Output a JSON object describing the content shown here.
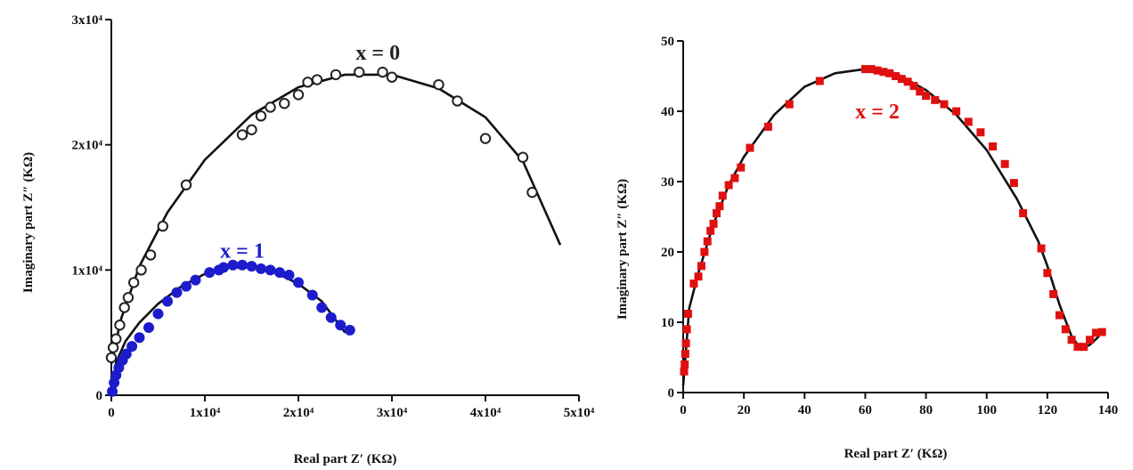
{
  "chart_data": [
    {
      "type": "scatter",
      "panel": "left",
      "xlabel": "Real part Z′ (KΩ)",
      "ylabel": "Imaginary part Z″ (KΩ)",
      "xlim": [
        0,
        50000
      ],
      "ylim": [
        0,
        30000
      ],
      "xticks": [
        0,
        10000,
        20000,
        30000,
        40000,
        50000
      ],
      "yticks": [
        0,
        10000,
        20000,
        30000
      ],
      "xtick_labels": [
        "0",
        "1x10⁴",
        "2x10⁴",
        "3x10⁴",
        "4x10⁴",
        "5x10⁴"
      ],
      "ytick_labels": [
        "0",
        "1x10⁴",
        "2x10⁴",
        "3x10⁴"
      ],
      "grid": false,
      "series": [
        {
          "name": "x = 0",
          "color": "#222222",
          "marker": "open-circle",
          "points": [
            [
              0,
              3000
            ],
            [
              200,
              3800
            ],
            [
              500,
              4500
            ],
            [
              900,
              5600
            ],
            [
              1400,
              7000
            ],
            [
              1800,
              7800
            ],
            [
              2400,
              9000
            ],
            [
              3200,
              10000
            ],
            [
              4200,
              11200
            ],
            [
              5500,
              13500
            ],
            [
              8000,
              16800
            ],
            [
              14000,
              20800
            ],
            [
              15000,
              21200
            ],
            [
              16000,
              22300
            ],
            [
              17000,
              23000
            ],
            [
              18500,
              23300
            ],
            [
              20000,
              24000
            ],
            [
              21000,
              25000
            ],
            [
              22000,
              25200
            ],
            [
              24000,
              25600
            ],
            [
              26500,
              25800
            ],
            [
              29000,
              25800
            ],
            [
              30000,
              25400
            ],
            [
              35000,
              24800
            ],
            [
              37000,
              23500
            ],
            [
              40000,
              20500
            ],
            [
              44000,
              19000
            ],
            [
              45000,
              16200
            ]
          ],
          "fit": [
            [
              0,
              2500
            ],
            [
              1000,
              6000
            ],
            [
              3000,
              10300
            ],
            [
              6000,
              14600
            ],
            [
              10000,
              18800
            ],
            [
              15000,
              22400
            ],
            [
              20000,
              24600
            ],
            [
              25000,
              25600
            ],
            [
              30000,
              25600
            ],
            [
              35000,
              24500
            ],
            [
              40000,
              22200
            ],
            [
              44000,
              18700
            ],
            [
              48000,
              12000
            ]
          ]
        },
        {
          "name": "x = 1",
          "color": "#1c1ccc",
          "marker": "filled-circle",
          "points": [
            [
              100,
              300
            ],
            [
              300,
              1000
            ],
            [
              500,
              1600
            ],
            [
              800,
              2200
            ],
            [
              1200,
              2800
            ],
            [
              1600,
              3300
            ],
            [
              2200,
              3900
            ],
            [
              3000,
              4600
            ],
            [
              4000,
              5400
            ],
            [
              5000,
              6500
            ],
            [
              6000,
              7500
            ],
            [
              7000,
              8200
            ],
            [
              8000,
              8700
            ],
            [
              9000,
              9200
            ],
            [
              10500,
              9800
            ],
            [
              11500,
              10000
            ],
            [
              12000,
              10200
            ],
            [
              13000,
              10400
            ],
            [
              14000,
              10400
            ],
            [
              15000,
              10300
            ],
            [
              16000,
              10100
            ],
            [
              17000,
              10000
            ],
            [
              18000,
              9800
            ],
            [
              19000,
              9600
            ],
            [
              20000,
              9000
            ],
            [
              21500,
              8000
            ],
            [
              22500,
              7000
            ],
            [
              23500,
              6200
            ],
            [
              24500,
              5600
            ],
            [
              25500,
              5200
            ]
          ],
          "fit": [
            [
              0,
              0
            ],
            [
              500,
              2600
            ],
            [
              1500,
              4300
            ],
            [
              3000,
              5800
            ],
            [
              5000,
              7300
            ],
            [
              7500,
              8700
            ],
            [
              10000,
              9700
            ],
            [
              12500,
              10200
            ],
            [
              15000,
              10200
            ],
            [
              17500,
              9800
            ],
            [
              20000,
              8900
            ],
            [
              22500,
              7500
            ],
            [
              25000,
              5000
            ]
          ]
        }
      ],
      "annotations": [
        {
          "text": "x = 0",
          "x": 28500,
          "y": 26800,
          "color": "#222222"
        },
        {
          "text": "x = 1",
          "x": 14000,
          "y": 11000,
          "color": "#1c1ccc"
        }
      ]
    },
    {
      "type": "scatter",
      "panel": "right",
      "xlabel": "Real part Z′ (KΩ)",
      "ylabel": "Imaginary part Z″ (KΩ)",
      "xlim": [
        0,
        140
      ],
      "ylim": [
        0,
        50
      ],
      "xticks": [
        0,
        20,
        40,
        60,
        80,
        100,
        120,
        140
      ],
      "yticks": [
        0,
        10,
        20,
        30,
        40,
        50
      ],
      "xtick_labels": [
        "0",
        "20",
        "40",
        "60",
        "80",
        "100",
        "120",
        "140"
      ],
      "ytick_labels": [
        "0",
        "10",
        "20",
        "30",
        "40",
        "50"
      ],
      "grid": false,
      "series": [
        {
          "name": "x = 2",
          "color": "#e01010",
          "marker": "filled-square",
          "points": [
            [
              0.3,
              3
            ],
            [
              0.5,
              4
            ],
            [
              0.7,
              5.5
            ],
            [
              0.9,
              7
            ],
            [
              1.2,
              9
            ],
            [
              1.6,
              11.2
            ],
            [
              3.5,
              15.5
            ],
            [
              5,
              16.5
            ],
            [
              6,
              18
            ],
            [
              7,
              20
            ],
            [
              8,
              21.5
            ],
            [
              9,
              23
            ],
            [
              10,
              24
            ],
            [
              11,
              25.5
            ],
            [
              12,
              26.5
            ],
            [
              13,
              28
            ],
            [
              15,
              29.5
            ],
            [
              17,
              30.5
            ],
            [
              19,
              32
            ],
            [
              22,
              34.8
            ],
            [
              28,
              37.8
            ],
            [
              35,
              41
            ],
            [
              45,
              44.3
            ],
            [
              60,
              46
            ],
            [
              62,
              46
            ],
            [
              64,
              45.8
            ],
            [
              66,
              45.6
            ],
            [
              68,
              45.4
            ],
            [
              70,
              45
            ],
            [
              72,
              44.6
            ],
            [
              74,
              44.2
            ],
            [
              76,
              43.6
            ],
            [
              78,
              42.8
            ],
            [
              80,
              42.2
            ],
            [
              83,
              41.6
            ],
            [
              86,
              41
            ],
            [
              90,
              40
            ],
            [
              94,
              38.5
            ],
            [
              98,
              37
            ],
            [
              102,
              35
            ],
            [
              106,
              32.5
            ],
            [
              109,
              29.8
            ],
            [
              112,
              25.5
            ],
            [
              118,
              20.5
            ],
            [
              120,
              17
            ],
            [
              122,
              14
            ],
            [
              124,
              11
            ],
            [
              126,
              9
            ],
            [
              128,
              7.5
            ],
            [
              130,
              6.5
            ],
            [
              132,
              6.5
            ],
            [
              134,
              7.5
            ],
            [
              136,
              8.5
            ],
            [
              138,
              8.6
            ]
          ],
          "fit": [
            [
              0,
              1
            ],
            [
              2,
              12
            ],
            [
              5,
              17
            ],
            [
              10,
              24
            ],
            [
              15,
              29.5
            ],
            [
              20,
              33.5
            ],
            [
              30,
              39.5
            ],
            [
              40,
              43.5
            ],
            [
              50,
              45.4
            ],
            [
              60,
              46
            ],
            [
              70,
              45.4
            ],
            [
              80,
              43
            ],
            [
              90,
              39.5
            ],
            [
              100,
              34.5
            ],
            [
              110,
              27.5
            ],
            [
              117,
              21.5
            ],
            [
              120,
              18
            ],
            [
              124,
              12.5
            ],
            [
              128,
              8
            ],
            [
              131,
              6.2
            ],
            [
              134,
              6.8
            ],
            [
              137,
              8
            ]
          ]
        }
      ],
      "annotations": [
        {
          "text": "x = 2",
          "x": 64,
          "y": 39,
          "color": "#e01010"
        }
      ]
    }
  ]
}
